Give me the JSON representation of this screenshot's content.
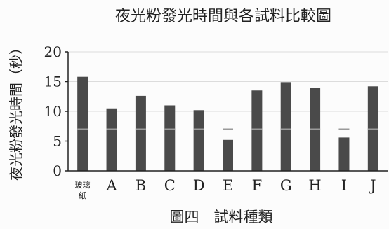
{
  "chart_data": {
    "type": "bar",
    "title": "夜光粉發光時間與各試料比較圖",
    "ylabel": "夜光粉發光時間（秒）",
    "xlabel": "圖四　試料種類",
    "categories": [
      "玻璃紙",
      "A",
      "B",
      "C",
      "D",
      "E",
      "F",
      "G",
      "H",
      "I",
      "J"
    ],
    "values": [
      15.8,
      10.5,
      12.6,
      11.0,
      10.2,
      5.2,
      13.5,
      14.9,
      14.0,
      5.6,
      14.2
    ],
    "ylim": [
      0,
      20
    ],
    "yticks": [
      "0",
      "5",
      "10",
      "15",
      "20"
    ],
    "grid": true,
    "colors": {
      "bar": "#4a4a4a",
      "text": "#222222",
      "axis": "#222222",
      "gridline": "#dcdcdc"
    }
  }
}
